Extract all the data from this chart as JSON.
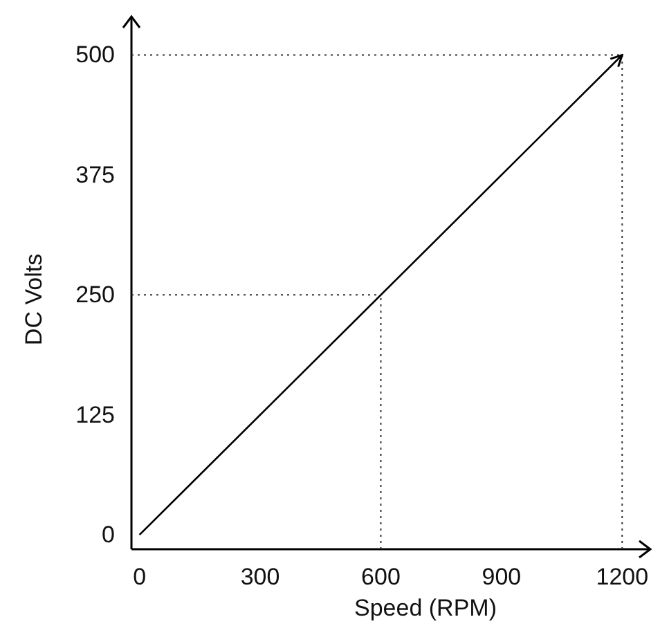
{
  "chart_data": {
    "type": "line",
    "xlabel": "Speed (RPM)",
    "ylabel": "DC Volts",
    "x": [
      0,
      1200
    ],
    "series": [
      {
        "color": "#000000",
        "values": [
          0,
          500
        ]
      }
    ],
    "xlim": [
      -20,
      1270
    ],
    "ylim": [
      -15,
      540
    ],
    "xticks": [
      0,
      300,
      600,
      900,
      1200
    ],
    "yticks": [
      0,
      125,
      250,
      375,
      500
    ],
    "ref_lines": [
      {
        "axis": "x",
        "value": 600,
        "line_style": "dotted"
      },
      {
        "axis": "y",
        "value": 250,
        "line_style": "dotted"
      },
      {
        "axis": "x",
        "value": 1200,
        "line_style": "dotted"
      },
      {
        "axis": "y",
        "value": 500,
        "line_style": "dotted"
      }
    ],
    "grid": false,
    "marker": "none",
    "line_style": "solid"
  }
}
